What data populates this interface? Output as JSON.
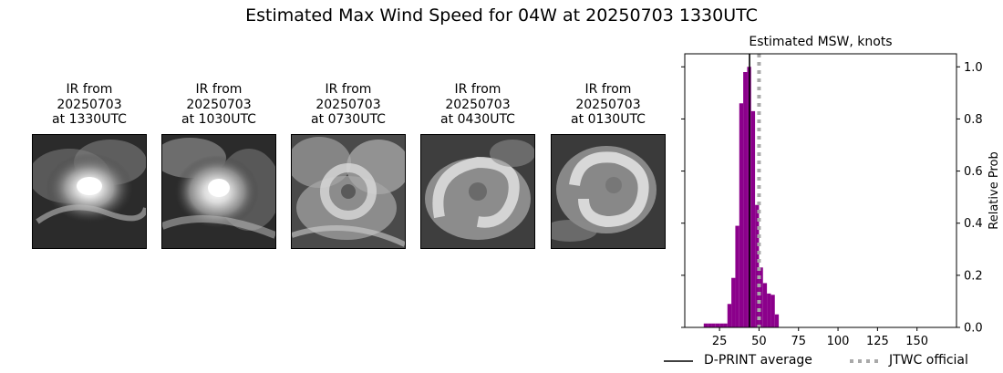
{
  "title": "Estimated Max Wind Speed for 04W at 20250703 1330UTC",
  "ir_panels": [
    {
      "line1": "IR from",
      "line2": "20250703",
      "line3": "at 1330UTC"
    },
    {
      "line1": "IR from",
      "line2": "20250703",
      "line3": "at 1030UTC"
    },
    {
      "line1": "IR from",
      "line2": "20250703",
      "line3": "at 0730UTC"
    },
    {
      "line1": "IR from",
      "line2": "20250703",
      "line3": "at 0430UTC"
    },
    {
      "line1": "IR from",
      "line2": "20250703",
      "line3": "at 0130UTC"
    }
  ],
  "chart_data": {
    "type": "bar",
    "title": "Estimated MSW, knots",
    "xlabel": "",
    "ylabel": "Relative Prob",
    "xlim": [
      3,
      175
    ],
    "ylim": [
      0,
      1.05
    ],
    "x_ticks": [
      25,
      50,
      75,
      100,
      125,
      150
    ],
    "y_ticks": [
      0.0,
      0.2,
      0.4,
      0.6,
      0.8,
      1.0
    ],
    "bin_width": 2.5,
    "bins": [
      {
        "x0": 15,
        "value": 0.015
      },
      {
        "x0": 17.5,
        "value": 0.015
      },
      {
        "x0": 20,
        "value": 0.015
      },
      {
        "x0": 22.5,
        "value": 0.015
      },
      {
        "x0": 25,
        "value": 0.015
      },
      {
        "x0": 27.5,
        "value": 0.015
      },
      {
        "x0": 30,
        "value": 0.09
      },
      {
        "x0": 32.5,
        "value": 0.19
      },
      {
        "x0": 35,
        "value": 0.39
      },
      {
        "x0": 37.5,
        "value": 0.86
      },
      {
        "x0": 40,
        "value": 0.98
      },
      {
        "x0": 42.5,
        "value": 1.0
      },
      {
        "x0": 45,
        "value": 0.83
      },
      {
        "x0": 47.5,
        "value": 0.47
      },
      {
        "x0": 50,
        "value": 0.23
      },
      {
        "x0": 52.5,
        "value": 0.17
      },
      {
        "x0": 55,
        "value": 0.13
      },
      {
        "x0": 57.5,
        "value": 0.125
      },
      {
        "x0": 60,
        "value": 0.05
      }
    ],
    "bar_color": "#8b008b",
    "dprint_average": 44,
    "jtwc_official": 50,
    "legend": [
      {
        "label": "D-PRINT average",
        "color": "#000000",
        "style": "solid"
      },
      {
        "label": "JTWC official",
        "color": "#a9a9a9",
        "style": "dotted"
      }
    ]
  }
}
